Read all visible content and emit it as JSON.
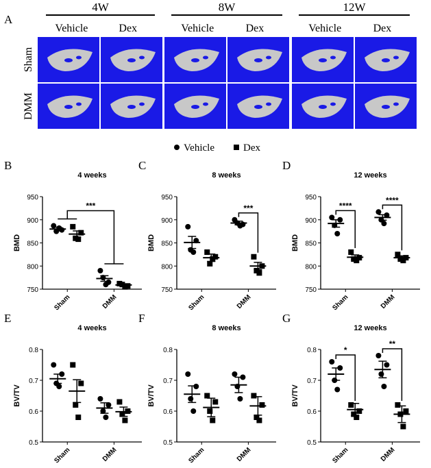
{
  "figure": {
    "panel_a": {
      "label": "A",
      "groups": [
        {
          "label": "4W",
          "columns": [
            "Vehicle",
            "Dex"
          ]
        },
        {
          "label": "8W",
          "columns": [
            "Vehicle",
            "Dex"
          ]
        },
        {
          "label": "12W",
          "columns": [
            "Vehicle",
            "Dex"
          ]
        }
      ],
      "rows": [
        "Sham",
        "DMM"
      ]
    },
    "legend": [
      {
        "name": "Vehicle",
        "marker": "circle"
      },
      {
        "name": "Dex",
        "marker": "square"
      }
    ]
  },
  "chart_data": [
    {
      "type": "scatter",
      "panel": "B",
      "title": "4 weeks",
      "y_label": "BMD",
      "categories": [
        "Sham",
        "DMM"
      ],
      "ylim": [
        750,
        950
      ],
      "yticks": [
        750,
        800,
        850,
        900,
        950
      ],
      "series": [
        {
          "values": [
            [
              887,
              878,
              875,
              882
            ],
            [
              790,
              765,
              775,
              760
            ]
          ],
          "mean": [
            880,
            773
          ],
          "sem": [
            4,
            6
          ]
        },
        {
          "values": [
            [
              885,
              872,
              860,
              858
            ],
            [
              762,
              757,
              760,
              755
            ]
          ],
          "mean": [
            869,
            759
          ],
          "sem": [
            7,
            2
          ]
        }
      ],
      "comparisons": [
        {
          "label": "***",
          "categories": [
            "Sham",
            "DMM"
          ]
        }
      ]
    },
    {
      "type": "scatter",
      "panel": "C",
      "title": "8 weeks",
      "y_label": "BMD",
      "categories": [
        "Sham",
        "DMM"
      ],
      "ylim": [
        750,
        950
      ],
      "yticks": [
        750,
        800,
        850,
        900,
        950
      ],
      "series": [
        {
          "values": [
            [
              885,
              855,
              835,
              830
            ],
            [
              900,
              890,
              893,
              887
            ]
          ],
          "mean": [
            851,
            893
          ],
          "sem": [
            13,
            4
          ]
        },
        {
          "values": [
            [
              830,
              820,
              805,
              815
            ],
            [
              820,
              800,
              790,
              785
            ]
          ],
          "mean": [
            818,
            800
          ],
          "sem": [
            8,
            8
          ]
        }
      ],
      "comparisons": [
        {
          "label": "***",
          "category": "DMM"
        }
      ]
    },
    {
      "type": "scatter",
      "panel": "D",
      "title": "12 weeks",
      "y_label": "BMD",
      "categories": [
        "Sham",
        "DMM"
      ],
      "ylim": [
        750,
        950
      ],
      "yticks": [
        750,
        800,
        850,
        900,
        950
      ],
      "series": [
        {
          "values": [
            [
              905,
              900,
              888,
              870
            ],
            [
              917,
              910,
              900,
              892
            ]
          ],
          "mean": [
            892,
            905
          ],
          "sem": [
            8,
            6
          ]
        },
        {
          "values": [
            [
              830,
              818,
              815,
              812
            ],
            [
              825,
              818,
              815,
              812
            ]
          ],
          "mean": [
            819,
            818
          ],
          "sem": [
            5,
            4
          ]
        }
      ],
      "comparisons": [
        {
          "label": "****",
          "category": "Sham"
        },
        {
          "label": "****",
          "category": "DMM"
        }
      ]
    },
    {
      "type": "scatter",
      "panel": "E",
      "title": "4 weeks",
      "y_label": "BV/TV",
      "categories": [
        "Sham",
        "DMM"
      ],
      "ylim": [
        0.5,
        0.8
      ],
      "yticks": [
        0.5,
        0.6,
        0.7,
        0.8
      ],
      "series": [
        {
          "values": [
            [
              0.75,
              0.72,
              0.69,
              0.68
            ],
            [
              0.64,
              0.62,
              0.6,
              0.58
            ]
          ],
          "mean": [
            0.705,
            0.61
          ],
          "sem": [
            0.015,
            0.017
          ]
        },
        {
          "values": [
            [
              0.75,
              0.69,
              0.62,
              0.58
            ],
            [
              0.63,
              0.6,
              0.59,
              0.57
            ]
          ],
          "mean": [
            0.665,
            0.598
          ],
          "sem": [
            0.037,
            0.015
          ]
        }
      ],
      "comparisons": []
    },
    {
      "type": "scatter",
      "panel": "F",
      "title": "8 weeks",
      "y_label": "BV/TV",
      "categories": [
        "Sham",
        "DMM"
      ],
      "ylim": [
        0.5,
        0.8
      ],
      "yticks": [
        0.5,
        0.6,
        0.7,
        0.8
      ],
      "series": [
        {
          "values": [
            [
              0.72,
              0.68,
              0.64,
              0.6
            ],
            [
              0.72,
              0.71,
              0.68,
              0.64
            ]
          ],
          "mean": [
            0.655,
            0.685
          ],
          "sem": [
            0.027,
            0.025
          ]
        },
        {
          "values": [
            [
              0.65,
              0.63,
              0.6,
              0.57
            ],
            [
              0.65,
              0.62,
              0.58,
              0.57
            ]
          ],
          "mean": [
            0.612,
            0.617
          ],
          "sem": [
            0.03,
            0.03
          ]
        }
      ],
      "comparisons": []
    },
    {
      "type": "scatter",
      "panel": "G",
      "title": "12 weeks",
      "y_label": "BV/TV",
      "categories": [
        "Sham",
        "DMM"
      ],
      "ylim": [
        0.5,
        0.8
      ],
      "yticks": [
        0.5,
        0.6,
        0.7,
        0.8
      ],
      "series": [
        {
          "values": [
            [
              0.76,
              0.74,
              0.7,
              0.67
            ],
            [
              0.78,
              0.75,
              0.72,
              0.68
            ]
          ],
          "mean": [
            0.72,
            0.735
          ],
          "sem": [
            0.02,
            0.027
          ]
        },
        {
          "values": [
            [
              0.62,
              0.6,
              0.59,
              0.58
            ],
            [
              0.62,
              0.6,
              0.59,
              0.55
            ]
          ],
          "mean": [
            0.605,
            0.59
          ],
          "sem": [
            0.02,
            0.027
          ]
        }
      ],
      "comparisons": [
        {
          "label": "*",
          "category": "Sham"
        },
        {
          "label": "**",
          "category": "DMM"
        }
      ]
    }
  ]
}
